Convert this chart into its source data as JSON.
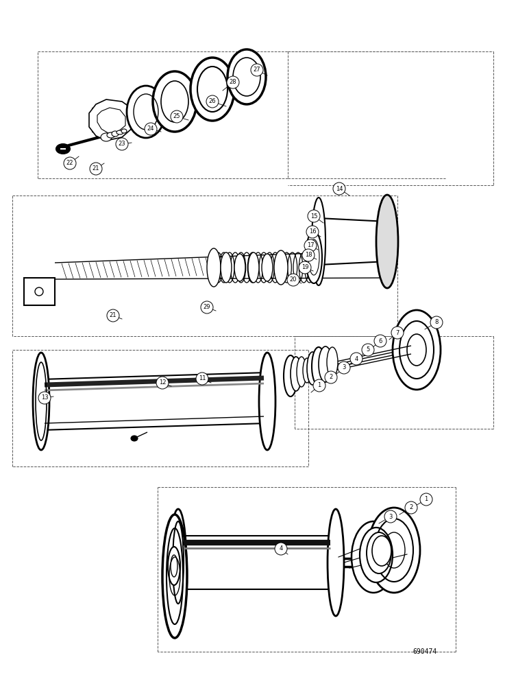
{
  "figure_width": 7.72,
  "figure_height": 10.0,
  "dpi": 100,
  "bg_color": "#ffffff",
  "line_color": "#000000",
  "part_number_text": "690474",
  "part_number_fontsize": 7
}
